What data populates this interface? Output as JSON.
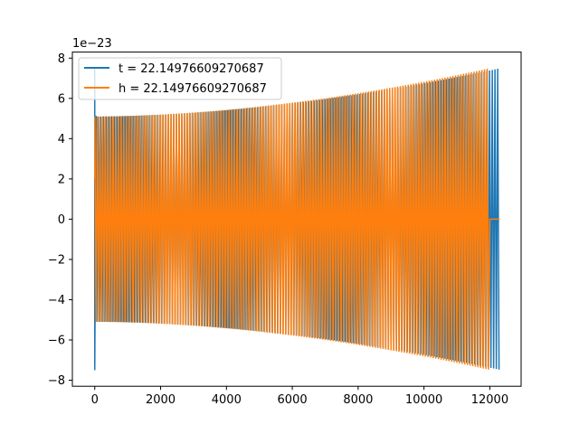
{
  "chart_data": {
    "type": "line",
    "title": "",
    "xlabel": "",
    "ylabel": "",
    "y_offset_label": "1e−23",
    "xlim": [
      -680,
      12950
    ],
    "ylim": [
      -8.3,
      8.3
    ],
    "x_ticks": [
      0,
      2000,
      4000,
      6000,
      8000,
      10000,
      12000
    ],
    "x_tick_labels": [
      "0",
      "2000",
      "4000",
      "6000",
      "8000",
      "10000",
      "12000"
    ],
    "y_ticks": [
      -8,
      -6,
      -4,
      -2,
      0,
      2,
      4,
      6,
      8
    ],
    "y_tick_labels": [
      "−8",
      "−6",
      "−4",
      "−2",
      "0",
      "2",
      "4",
      "6",
      "8"
    ],
    "grid": false,
    "legend_position": "top-left",
    "series": [
      {
        "name": "t = 22.14976609270687",
        "color": "#1f77b4",
        "x_start": 0,
        "x_end": 12300,
        "amplitude_start": 5.1,
        "amplitude_end": 7.5,
        "initial_spike": 7.5,
        "approx_cycles": 150
      },
      {
        "name": "h = 22.14976609270687",
        "color": "#ff7f0e",
        "x_start": 0,
        "x_end": 12000,
        "amplitude_start": 5.1,
        "amplitude_end": 7.5,
        "tail_x_end": 12300,
        "approx_cycles": 150
      }
    ]
  }
}
